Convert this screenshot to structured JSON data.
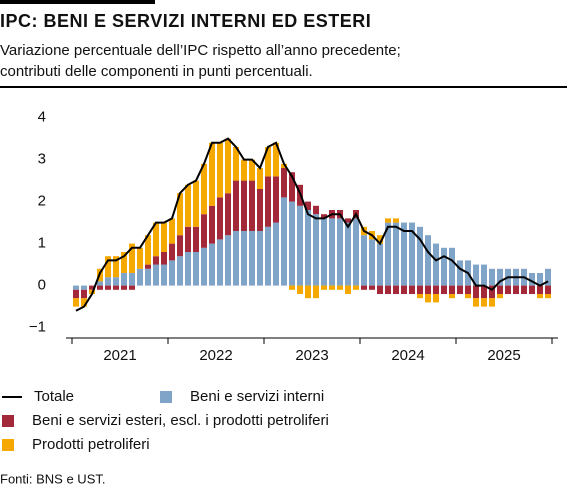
{
  "chart_data": {
    "type": "stacked-bar-line",
    "title": "IPC: BENI E SERVIZI INTERNI ED ESTERI",
    "subtitle": [
      "Variazione percentuale dell’IPC rispetto all’anno precedente;",
      "contributi delle componenti in punti percentuali."
    ],
    "years": [
      "2021",
      "2022",
      "2023",
      "2024",
      "2025"
    ],
    "ylim": [
      -1.2,
      4.3
    ],
    "yticks": [
      {
        "value": -1,
        "label": "−1"
      },
      0,
      1,
      2,
      3,
      4
    ],
    "series": [
      {
        "name": "Beni e servizi interni",
        "color": "#7fa4c8",
        "values": [
          -0.1,
          -0.1,
          0.0,
          0.1,
          0.2,
          0.2,
          0.3,
          0.3,
          0.4,
          0.4,
          0.5,
          0.5,
          0.6,
          0.7,
          0.8,
          0.8,
          0.9,
          1.0,
          1.1,
          1.2,
          1.3,
          1.3,
          1.3,
          1.3,
          1.4,
          1.5,
          2.1,
          2.0,
          1.9,
          1.8,
          1.7,
          1.6,
          1.6,
          1.6,
          1.5,
          1.6,
          1.2,
          1.1,
          1.0,
          1.5,
          1.5,
          1.5,
          1.5,
          1.4,
          1.2,
          1.0,
          0.9,
          0.9,
          0.6,
          0.6,
          0.5,
          0.5,
          0.4,
          0.4,
          0.4,
          0.4,
          0.4,
          0.3,
          0.3,
          0.4
        ]
      },
      {
        "name": "Beni e servizi esteri, escl. i prodotti petroliferi",
        "color": "#a3293a",
        "values": [
          -0.2,
          -0.2,
          -0.1,
          -0.1,
          -0.1,
          -0.1,
          -0.1,
          -0.1,
          0.0,
          0.1,
          0.2,
          0.3,
          0.4,
          0.5,
          0.6,
          0.6,
          0.8,
          0.9,
          1.0,
          1.0,
          1.2,
          1.2,
          1.2,
          1.0,
          1.2,
          1.1,
          0.7,
          0.7,
          0.5,
          0.2,
          0.2,
          0.1,
          0.2,
          0.2,
          0.1,
          0.2,
          -0.1,
          -0.1,
          -0.2,
          -0.2,
          -0.2,
          -0.2,
          -0.2,
          -0.2,
          -0.2,
          -0.2,
          -0.2,
          -0.2,
          -0.2,
          -0.2,
          -0.3,
          -0.3,
          -0.3,
          -0.2,
          -0.2,
          -0.2,
          -0.2,
          -0.2,
          -0.2,
          -0.2
        ]
      },
      {
        "name": "Prodotti petroliferi",
        "color": "#f5a800",
        "values": [
          -0.2,
          -0.2,
          -0.1,
          0.3,
          0.5,
          0.5,
          0.5,
          0.7,
          0.5,
          0.7,
          0.8,
          0.7,
          0.6,
          1.0,
          1.0,
          1.1,
          1.2,
          1.5,
          1.3,
          1.3,
          0.8,
          0.5,
          0.5,
          0.5,
          0.7,
          0.8,
          0.1,
          -0.1,
          -0.2,
          -0.3,
          -0.3,
          -0.1,
          -0.1,
          -0.1,
          -0.2,
          -0.1,
          0.2,
          0.2,
          0.2,
          0.1,
          0.1,
          0.0,
          0.0,
          -0.1,
          -0.2,
          -0.2,
          0.0,
          -0.1,
          0.0,
          -0.1,
          -0.2,
          -0.2,
          -0.2,
          -0.1,
          0.0,
          0.0,
          0.0,
          0.0,
          -0.1,
          -0.1
        ]
      }
    ],
    "line": {
      "name": "Totale",
      "color": "#000000",
      "values": [
        -0.6,
        -0.5,
        -0.2,
        0.3,
        0.6,
        0.6,
        0.7,
        0.9,
        0.9,
        1.2,
        1.5,
        1.5,
        1.6,
        2.2,
        2.4,
        2.5,
        2.9,
        3.4,
        3.4,
        3.5,
        3.3,
        3.0,
        3.0,
        2.8,
        3.3,
        3.4,
        2.9,
        2.6,
        2.2,
        1.7,
        1.6,
        1.6,
        1.7,
        1.7,
        1.4,
        1.7,
        1.3,
        1.2,
        1.0,
        1.4,
        1.4,
        1.3,
        1.3,
        1.1,
        0.8,
        0.6,
        0.7,
        0.6,
        0.4,
        0.3,
        0.0,
        0.0,
        -0.1,
        0.1,
        0.2,
        0.2,
        0.2,
        0.1,
        0.0,
        0.1
      ]
    },
    "source": "Fonti: BNS e UST."
  }
}
